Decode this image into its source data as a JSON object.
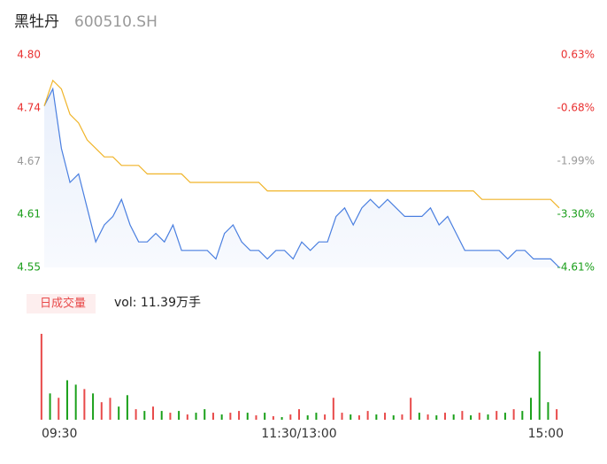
{
  "chart_data": [
    {
      "type": "line",
      "title": "黑牡丹",
      "subtitle": "600510.SH",
      "x": [
        0,
        4,
        8,
        12,
        16,
        20,
        24,
        28,
        32,
        36,
        40,
        44,
        48,
        52,
        56,
        60,
        64,
        68,
        72,
        76,
        80,
        84,
        88,
        92,
        96,
        100,
        104,
        108,
        112,
        116,
        120,
        124,
        128,
        132,
        136,
        140,
        144,
        148,
        152,
        156,
        160,
        164,
        168,
        172,
        176,
        180,
        184,
        188,
        192,
        196,
        200,
        204,
        208,
        212,
        216,
        220,
        224,
        228,
        232,
        236,
        240
      ],
      "xlim": [
        0,
        240
      ],
      "ylim": [
        4.55,
        4.8
      ],
      "yticks": [
        {
          "value": 4.8,
          "label": "4.80"
        },
        {
          "value": 4.7376,
          "label": "4.74"
        },
        {
          "value": 4.6745,
          "label": "4.67"
        },
        {
          "value": 4.6126,
          "label": "4.61"
        },
        {
          "value": 4.55,
          "label": "4.55"
        }
      ],
      "y2lim": [
        -4.61,
        0.63
      ],
      "y2ticks": [
        {
          "value": 0.63,
          "label": "0.63%"
        },
        {
          "value": -0.68,
          "label": "-0.68%"
        },
        {
          "value": -1.99,
          "label": "-1.99%"
        },
        {
          "value": -3.3,
          "label": "-3.30%"
        },
        {
          "value": -4.61,
          "label": "-4.61%"
        }
      ],
      "grid": false,
      "series": [
        {
          "name": "price",
          "color": "#4a7fe0",
          "values": [
            4.74,
            4.76,
            4.69,
            4.65,
            4.66,
            4.62,
            4.58,
            4.6,
            4.61,
            4.63,
            4.6,
            4.58,
            4.58,
            4.59,
            4.58,
            4.6,
            4.57,
            4.57,
            4.57,
            4.57,
            4.56,
            4.59,
            4.6,
            4.58,
            4.57,
            4.57,
            4.56,
            4.57,
            4.57,
            4.56,
            4.58,
            4.57,
            4.58,
            4.58,
            4.61,
            4.62,
            4.6,
            4.62,
            4.63,
            4.62,
            4.63,
            4.62,
            4.61,
            4.61,
            4.61,
            4.62,
            4.6,
            4.61,
            4.59,
            4.57,
            4.57,
            4.57,
            4.57,
            4.57,
            4.56,
            4.57,
            4.57,
            4.56,
            4.56,
            4.56,
            4.55
          ]
        },
        {
          "name": "average",
          "color": "#f0b429",
          "values": [
            4.74,
            4.77,
            4.76,
            4.73,
            4.72,
            4.7,
            4.69,
            4.68,
            4.68,
            4.67,
            4.67,
            4.67,
            4.66,
            4.66,
            4.66,
            4.66,
            4.66,
            4.65,
            4.65,
            4.65,
            4.65,
            4.65,
            4.65,
            4.65,
            4.65,
            4.65,
            4.64,
            4.64,
            4.64,
            4.64,
            4.64,
            4.64,
            4.64,
            4.64,
            4.64,
            4.64,
            4.64,
            4.64,
            4.64,
            4.64,
            4.64,
            4.64,
            4.64,
            4.64,
            4.64,
            4.64,
            4.64,
            4.64,
            4.64,
            4.64,
            4.64,
            4.63,
            4.63,
            4.63,
            4.63,
            4.63,
            4.63,
            4.63,
            4.63,
            4.63,
            4.62
          ]
        }
      ]
    },
    {
      "type": "bar",
      "title": "日成交量",
      "subtitle": "vol: 11.39万手",
      "categories": [
        "09:30",
        null,
        null,
        null,
        null,
        null,
        null,
        null,
        null,
        null,
        null,
        null,
        null,
        null,
        null,
        null,
        null,
        null,
        null,
        null,
        null,
        null,
        null,
        null,
        null,
        null,
        null,
        null,
        null,
        null,
        "11:30/13:00",
        null,
        null,
        null,
        null,
        null,
        null,
        null,
        null,
        null,
        null,
        null,
        null,
        null,
        null,
        null,
        null,
        null,
        null,
        null,
        null,
        null,
        null,
        null,
        null,
        null,
        null,
        null,
        null,
        null,
        "15:00"
      ],
      "values": [
        7840,
        2400,
        2000,
        3600,
        3200,
        2800,
        2400,
        1600,
        2000,
        1200,
        2240,
        960,
        800,
        1200,
        800,
        640,
        800,
        480,
        640,
        960,
        640,
        480,
        640,
        800,
        640,
        400,
        640,
        320,
        240,
        480,
        960,
        400,
        640,
        480,
        2000,
        640,
        480,
        400,
        800,
        480,
        640,
        400,
        480,
        2000,
        640,
        480,
        400,
        640,
        480,
        800,
        400,
        640,
        480,
        800,
        640,
        960,
        800,
        2000,
        6240,
        1600,
        960
      ],
      "colors": [
        "#e84a4a",
        "#1aa01a",
        "#e84a4a",
        "#1aa01a",
        "#1aa01a",
        "#e84a4a",
        "#1aa01a",
        "#e84a4a",
        "#e84a4a",
        "#1aa01a",
        "#1aa01a",
        "#e84a4a",
        "#1aa01a",
        "#e84a4a",
        "#1aa01a",
        "#e84a4a",
        "#1aa01a",
        "#e84a4a",
        "#1aa01a",
        "#1aa01a",
        "#e84a4a",
        "#1aa01a",
        "#e84a4a",
        "#e84a4a",
        "#1aa01a",
        "#e84a4a",
        "#1aa01a",
        "#e84a4a",
        "#1aa01a",
        "#e84a4a",
        "#e84a4a",
        "#1aa01a",
        "#1aa01a",
        "#e84a4a",
        "#e84a4a",
        "#e84a4a",
        "#1aa01a",
        "#e84a4a",
        "#e84a4a",
        "#1aa01a",
        "#e84a4a",
        "#1aa01a",
        "#e84a4a",
        "#e84a4a",
        "#1aa01a",
        "#e84a4a",
        "#1aa01a",
        "#e84a4a",
        "#1aa01a",
        "#e84a4a",
        "#1aa01a",
        "#e84a4a",
        "#1aa01a",
        "#e84a4a",
        "#1aa01a",
        "#e84a4a",
        "#1aa01a",
        "#1aa01a",
        "#1aa01a",
        "#1aa01a",
        "#e84a4a"
      ],
      "ylim": [
        0,
        8000
      ]
    }
  ]
}
